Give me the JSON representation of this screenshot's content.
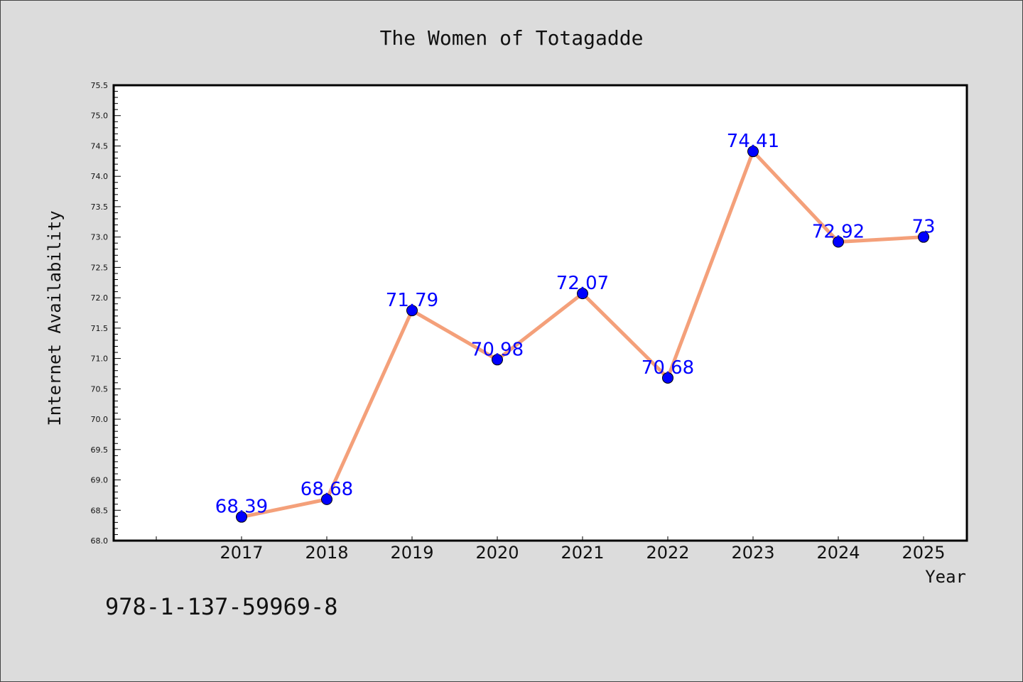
{
  "chart_data": {
    "type": "line",
    "title": "The Women of Totagadde",
    "xlabel": "Year",
    "ylabel": "Internet Availability",
    "categories": [
      "2017",
      "2018",
      "2019",
      "2020",
      "2021",
      "2022",
      "2023",
      "2024",
      "2025"
    ],
    "series": [
      {
        "values": [
          68.39,
          68.68,
          71.79,
          70.98,
          72.07,
          70.68,
          74.41,
          72.92,
          73
        ],
        "data_labels": [
          "68.39",
          "68.68",
          "71.79",
          "70.98",
          "72.07",
          "70.68",
          "74.41",
          "72.92",
          "73"
        ],
        "line_color": "#f4a07a",
        "marker_color": "#0000ff"
      }
    ],
    "ylim": [
      68.0,
      75.5
    ],
    "y_ticks": [
      "68.0",
      "68.5",
      "69.0",
      "69.5",
      "70.0",
      "70.5",
      "71.0",
      "71.5",
      "72.0",
      "72.5",
      "73.0",
      "73.5",
      "74.0",
      "74.5",
      "75.0",
      "75.5"
    ],
    "grid": false,
    "legend": "none"
  },
  "footer": {
    "isbn": "978-1-137-59969-8"
  },
  "colors": {
    "background": "#dcdcdc",
    "plot_background": "#ffffff",
    "label_color": "#0000ff"
  }
}
